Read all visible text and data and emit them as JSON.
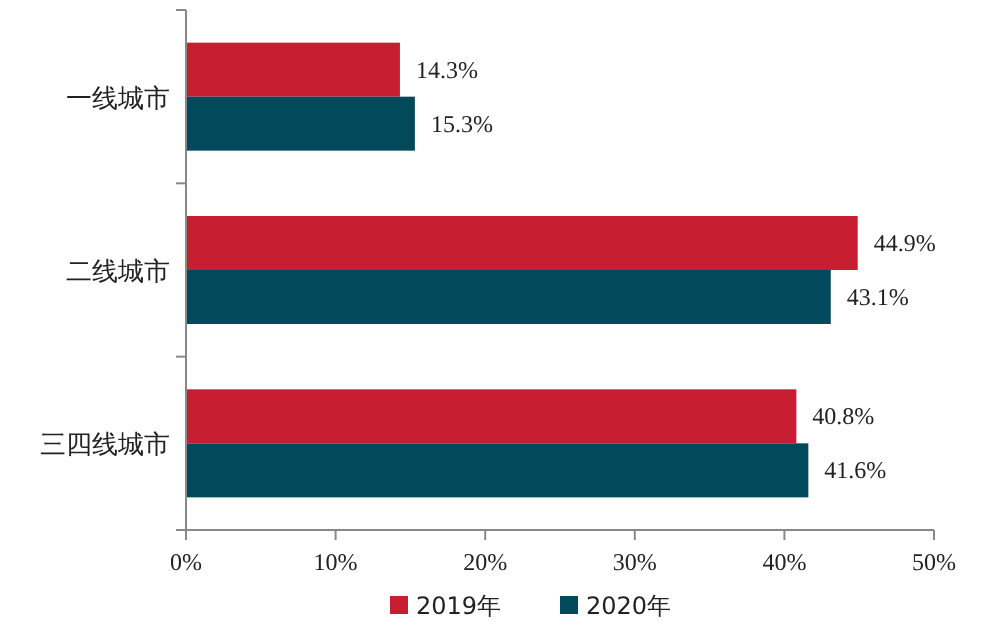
{
  "chart_data": {
    "type": "bar",
    "orientation": "horizontal",
    "categories": [
      "一线城市",
      "二线城市",
      "三四线城市"
    ],
    "series": [
      {
        "name": "2019年",
        "color": "#c81e32",
        "values": [
          14.3,
          44.9,
          40.8
        ],
        "value_labels": [
          "14.3%",
          "44.9%",
          "40.8%"
        ]
      },
      {
        "name": "2020年",
        "color": "#024a5b",
        "values": [
          15.3,
          43.1,
          41.6
        ],
        "value_labels": [
          "15.3%",
          "43.1%",
          "41.6%"
        ]
      }
    ],
    "xlim": [
      0,
      50
    ],
    "xticks": [
      {
        "value": 0,
        "label": "0%"
      },
      {
        "value": 10,
        "label": "10%"
      },
      {
        "value": 20,
        "label": "20%"
      },
      {
        "value": 30,
        "label": "30%"
      },
      {
        "value": 40,
        "label": "40%"
      },
      {
        "value": 50,
        "label": "50%"
      }
    ],
    "legend": "bottom"
  }
}
